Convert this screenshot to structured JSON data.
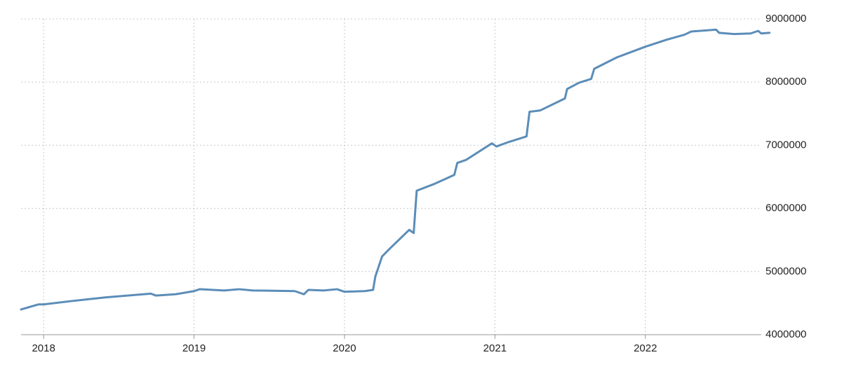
{
  "chart_data": {
    "type": "line",
    "x": [
      2017.85,
      2017.967,
      2018.0,
      2018.177,
      2018.41,
      2018.713,
      2018.746,
      2018.876,
      2019.0,
      2019.037,
      2019.2,
      2019.3,
      2019.39,
      2019.67,
      2019.73,
      2019.76,
      2019.86,
      2019.95,
      2020.0,
      2020.135,
      2020.19,
      2020.205,
      2020.25,
      2020.3,
      2020.43,
      2020.46,
      2020.48,
      2020.6,
      2020.73,
      2020.75,
      2020.81,
      2020.98,
      2021.01,
      2021.09,
      2021.21,
      2021.23,
      2021.3,
      2021.465,
      2021.48,
      2021.56,
      2021.64,
      2021.66,
      2021.81,
      2022.0,
      2022.14,
      2022.26,
      2022.305,
      2022.47,
      2022.49,
      2022.59,
      2022.7,
      2022.75,
      2022.77,
      2022.825
    ],
    "values": [
      4400000,
      4480000,
      4480000,
      4530000,
      4590000,
      4650000,
      4620000,
      4640000,
      4690000,
      4720000,
      4700000,
      4720000,
      4700000,
      4690000,
      4640000,
      4710000,
      4700000,
      4720000,
      4680000,
      4690000,
      4710000,
      4920000,
      5240000,
      5360000,
      5660000,
      5610000,
      6280000,
      6390000,
      6530000,
      6720000,
      6770000,
      7030000,
      6980000,
      7050000,
      7140000,
      7530000,
      7550000,
      7740000,
      7890000,
      7990000,
      8050000,
      8210000,
      8390000,
      8560000,
      8670000,
      8750000,
      8800000,
      8830000,
      8780000,
      8760000,
      8770000,
      8810000,
      8770000,
      8780000
    ],
    "color": "#5b8db8",
    "xlim": [
      2017.85,
      2022.85
    ],
    "xticks": [
      2018,
      2019,
      2020,
      2021,
      2022
    ],
    "ylim": [
      4000000,
      9000000
    ],
    "yticks": [
      4000000,
      5000000,
      6000000,
      7000000,
      8000000,
      9000000
    ],
    "grid": true
  }
}
